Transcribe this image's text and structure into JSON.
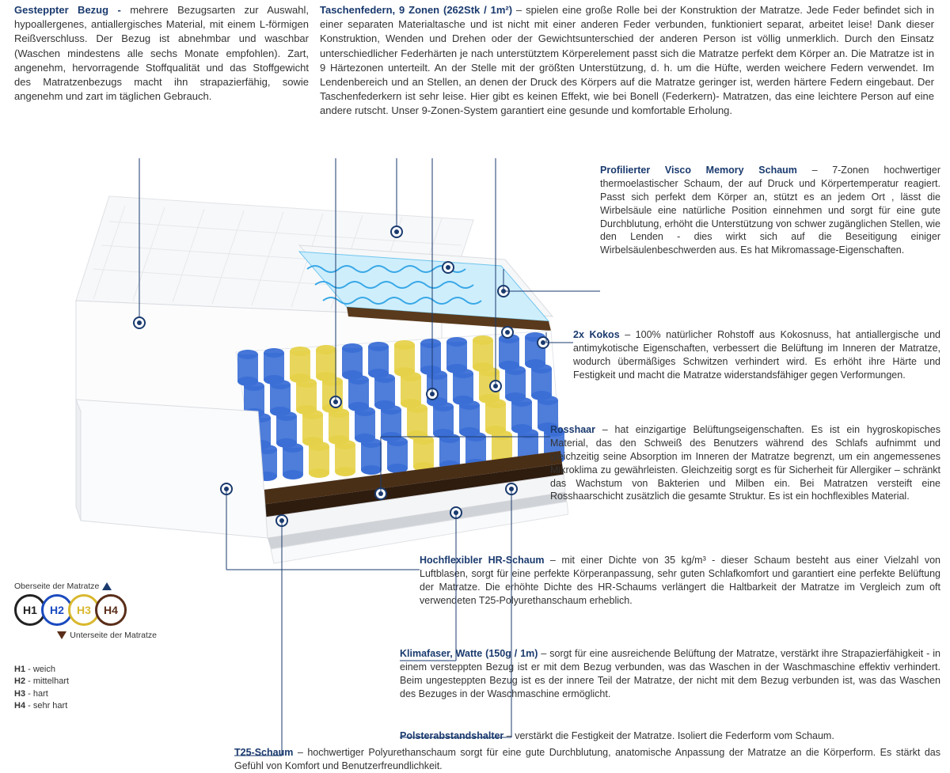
{
  "colors": {
    "heading": "#1a3a6e",
    "body": "#333333",
    "h1_border": "#222222",
    "h2_border": "#1a4abf",
    "h3_border": "#d9b82e",
    "h4_border": "#5a2e1a"
  },
  "top_left": {
    "title": "Gesteppter Bezug -",
    "body": " mehrere Bezugsarten zur Auswahl, hypoallergenes, antiallergisches Material, mit einem L-förmigen Reißverschluss. Der Bezug ist abnehmbar und waschbar (Waschen mindestens alle sechs Monate empfohlen). Zart, angenehm, hervorragende Stoffqualität und das Stoffgewicht des Matratzenbezugs macht ihn strapazierfähig, sowie angenehm und zart im täglichen Gebrauch."
  },
  "top_right": {
    "title": "Taschenfedern, 9 Zonen (262Stk / 1m²)",
    "body": " – spielen eine große Rolle bei der Konstruktion der Matratze. Jede Feder befindet sich in einer separaten Materialtasche und ist nicht mit einer anderen Feder verbunden, funktioniert separat, arbeitet leise! Dank dieser Konstruktion, Wenden und Drehen oder der Gewichtsunterschied der anderen Person ist völlig unmerklich. Durch den Einsatz unterschiedlicher Federhärten je nach unterstütztem Körperelement passt sich die Matratze perfekt dem Körper an. Die Matratze ist in 9 Härtezonen unterteilt. An der Stelle mit der größten Unterstützung, d. h. um die Hüfte, werden weichere Federn verwendet. Im Lendenbereich und an Stellen, an denen der Druck des Körpers auf die Matratze geringer ist, werden härtere Federn eingebaut. Der Taschenfederkern ist sehr leise. Hier gibt es keinen Effekt, wie bei Bonell (Federkern)- Matratzen, das eine leichtere Person auf eine andere rutscht. Unser 9-Zonen-System garantiert eine gesunde und komfortable Erholung."
  },
  "descs": {
    "visco": {
      "title": "Profilierter Visco Memory Schaum",
      "body": " – 7-Zonen hochwertiger thermoelastischer Schaum, der auf Druck und Körpertemperatur reagiert. Passt sich perfekt dem Körper an, stützt es an jedem Ort , lässt die Wirbelsäule eine natürliche Position einnehmen und sorgt für eine gute Durchblutung, erhöht die Unterstützung von schwer zugänglichen Stellen, wie den Lenden - dies wirkt sich auf die Beseitigung einiger Wirbelsäulenbeschwerden aus. Es hat Mikromassage-Eigenschaften."
    },
    "kokos": {
      "title": "2x Kokos",
      "body": " – 100% natürlicher Rohstoff aus Kokosnuss, hat antiallergische und antimykotische Eigenschaften, verbessert die Belüftung im Inneren der Matratze, wodurch übermäßiges Schwitzen verhindert wird. Es erhöht ihre Härte und Festigkeit und macht die Matratze widerstandsfähiger gegen Verformungen."
    },
    "rosshaar": {
      "title": "Rosshaar",
      "body": " – hat einzigartige Belüftungseigenschaften. Es ist ein hygroskopisches Material, das den Schweiß des Benutzers während des Schlafs aufnimmt und gleichzeitig seine Absorption im Inneren der Matratze begrenzt, um ein angemessenes Mikroklima zu gewährleisten. Gleichzeitig sorgt es für Sicherheit für Allergiker – schränkt das Wachstum von Bakterien und Milben ein. Bei Matratzen versteift eine Rosshaarschicht zusätzlich die gesamte Struktur. Es ist ein hochflexibles Material."
    },
    "hr": {
      "title": "Hochflexibler HR-Schaum",
      "body": " – mit einer Dichte von 35 kg/m³ - dieser Schaum besteht aus einer Vielzahl von Luftblasen, sorgt für eine perfekte Körperanpassung, sehr guten Schlafkomfort und garantiert eine perfekte Belüftung der Matratze. Die erhöhte Dichte des HR-Schaums verlängert die Haltbarkeit der Matratze im Vergleich zum oft verwendeten T25-Polyurethanschaum erheblich."
    },
    "klima": {
      "title": "Klimafaser, Watte (150g / 1m)",
      "body": " – sorgt für eine ausreichende Belüftung der Matratze, verstärkt ihre Strapazierfähigkeit - in einem versteppten Bezug ist er mit dem Bezug verbunden, was das Waschen in der Waschmaschine effektiv verhindert. Beim ungesteppten Bezug ist es der innere Teil der Matratze, der nicht mit dem Bezug verbunden ist, was das Waschen des Bezuges in der Waschmaschine ermöglicht."
    },
    "polster": {
      "title": "Polsterabstandshalter",
      "body": " – verstärkt die Festigkeit der Matratze. Isoliert die Federform vom Schaum."
    },
    "t25": {
      "title": "T25-Schaum",
      "body": " – hochwertiger Polyurethanschaum sorgt für eine gute Durchblutung, anatomische Anpassung der Matratze an die Körperform. Es stärkt das Gefühl von Komfort und Benutzerfreundlichkeit."
    }
  },
  "legend": {
    "top_label": "Oberseite der Matratze",
    "bottom_label": "Unterseite der Matratze",
    "items": [
      {
        "code": "H1",
        "name": "weich",
        "color": "#222222"
      },
      {
        "code": "H2",
        "name": "mittelhart",
        "color": "#1a4abf"
      },
      {
        "code": "H3",
        "name": "hart",
        "color": "#d9b82e"
      },
      {
        "code": "H4",
        "name": "sehr hart",
        "color": "#5a2e1a"
      }
    ]
  }
}
